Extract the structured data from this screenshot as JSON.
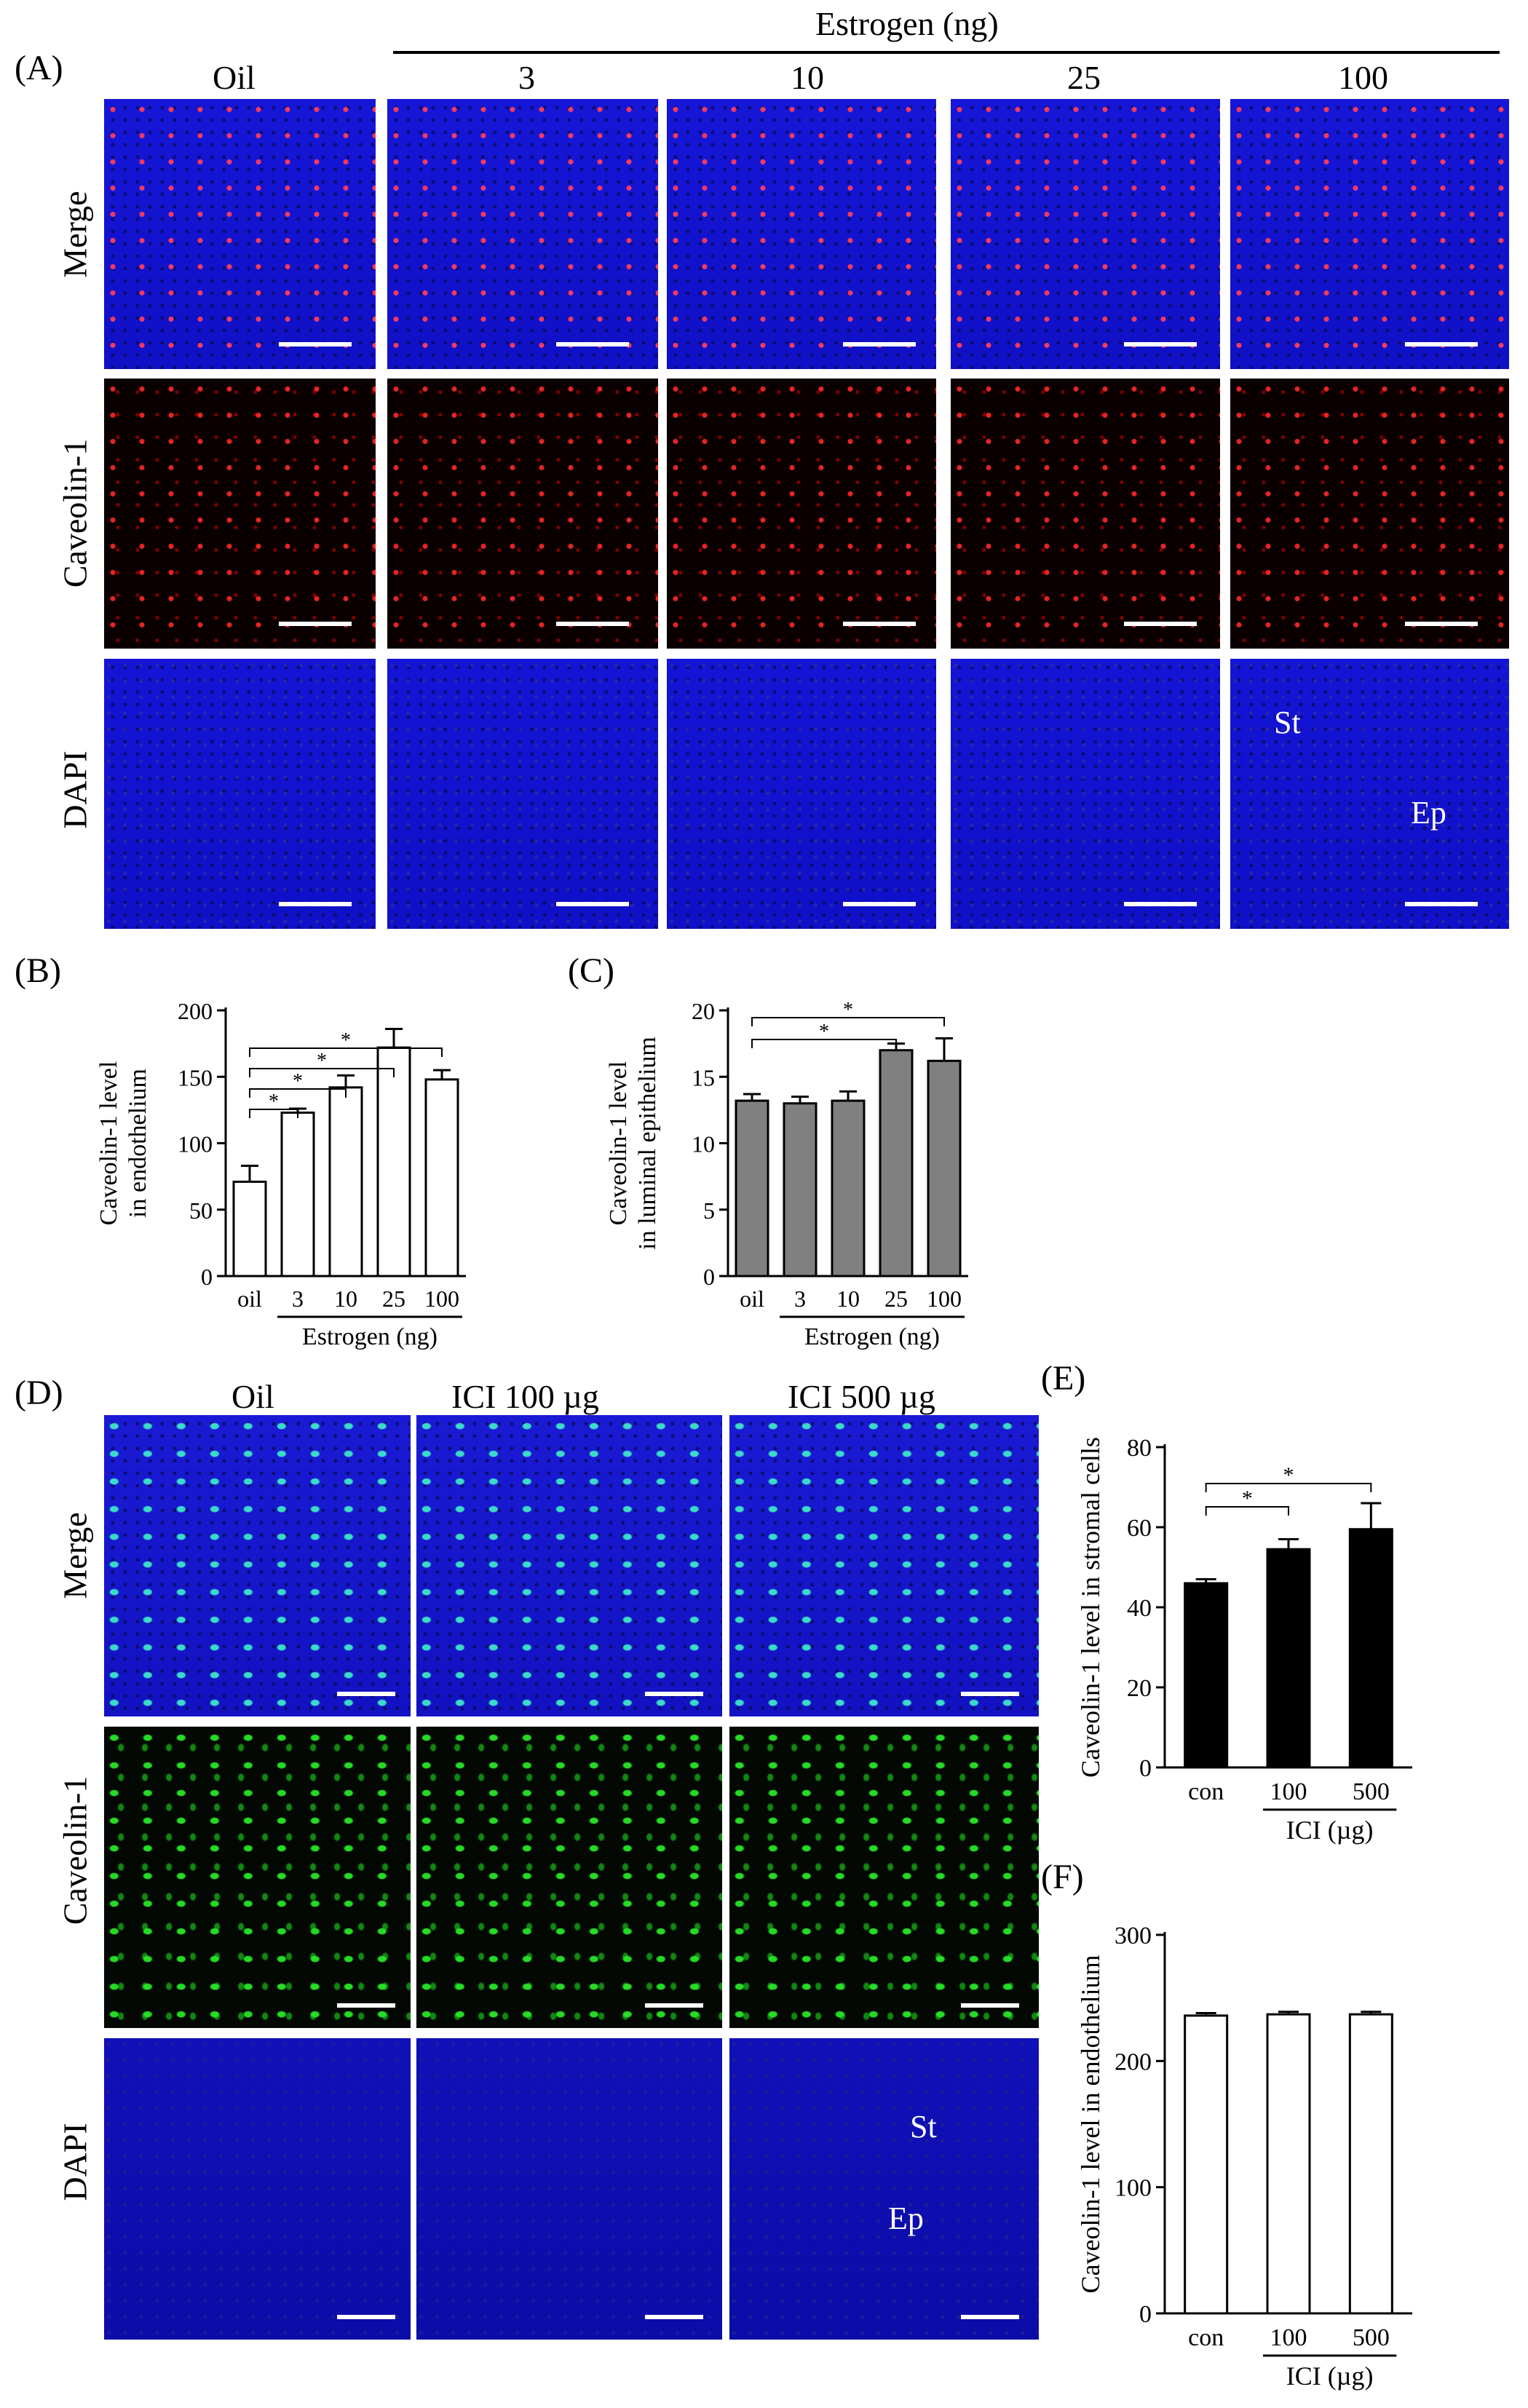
{
  "figure": {
    "panel_labels": {
      "A": "(A)",
      "B": "(B)",
      "C": "(C)",
      "D": "(D)",
      "E": "(E)",
      "F": "(F)"
    },
    "panel_a": {
      "group_header": "Estrogen (ng)",
      "columns": [
        "Oil",
        "3",
        "10",
        "25",
        "100"
      ],
      "rows": [
        "Merge",
        "Caveolin-1",
        "DAPI"
      ],
      "annotations": {
        "st": "St",
        "ep": "Ep"
      }
    },
    "panel_d": {
      "columns": [
        "Oil",
        "ICI 100 µg",
        "ICI 500 µg"
      ],
      "rows": [
        "Merge",
        "Caveolin-1",
        "DAPI"
      ],
      "annotations": {
        "st": "St",
        "ep": "Ep"
      }
    }
  },
  "chart_data": [
    {
      "id": "B",
      "type": "bar",
      "categories": [
        "oil",
        "3",
        "10",
        "25",
        "100"
      ],
      "values": [
        71,
        123,
        142,
        172,
        148
      ],
      "errors": [
        12,
        3,
        9,
        14,
        7
      ],
      "ylabel_lines": [
        "Caveolin-1 level",
        "in endothelium"
      ],
      "ylim": [
        0,
        200
      ],
      "yticks": [
        "0",
        "50",
        "100",
        "150",
        "200"
      ],
      "group_label": "Estrogen (ng)",
      "bar_color": "#ffffff",
      "significance": [
        [
          "oil",
          "3",
          "*"
        ],
        [
          "oil",
          "10",
          "*"
        ],
        [
          "oil",
          "25",
          "*"
        ],
        [
          "oil",
          "100",
          "*"
        ]
      ]
    },
    {
      "id": "C",
      "type": "bar",
      "categories": [
        "oil",
        "3",
        "10",
        "25",
        "100"
      ],
      "values": [
        13.2,
        13.0,
        13.2,
        17.0,
        16.2
      ],
      "errors": [
        0.5,
        0.5,
        0.7,
        0.5,
        1.7
      ],
      "ylabel_lines": [
        "Caveolin-1 level",
        "in luminal epithelium"
      ],
      "ylim": [
        0,
        20
      ],
      "yticks": [
        "0",
        "5",
        "10",
        "15",
        "20"
      ],
      "group_label": "Estrogen (ng)",
      "bar_color": "#808080",
      "significance": [
        [
          "oil",
          "25",
          "*"
        ],
        [
          "oil",
          "100",
          "*"
        ]
      ]
    },
    {
      "id": "E",
      "type": "bar",
      "categories": [
        "con",
        "100",
        "500"
      ],
      "values": [
        46,
        54.5,
        59.5
      ],
      "errors": [
        1,
        2.5,
        6.5
      ],
      "ylabel_lines": [
        "Caveolin-1 level in stromal cells"
      ],
      "ylim": [
        0,
        80
      ],
      "yticks": [
        "0",
        "20",
        "40",
        "60",
        "80"
      ],
      "group_label": "ICI (µg)",
      "bar_color": "#000000",
      "significance": [
        [
          "con",
          "100",
          "*"
        ],
        [
          "con",
          "500",
          "*"
        ]
      ]
    },
    {
      "id": "F",
      "type": "bar",
      "categories": [
        "con",
        "100",
        "500"
      ],
      "values": [
        236,
        237,
        237
      ],
      "errors": [
        2,
        2,
        2
      ],
      "ylabel_lines": [
        "Caveolin-1 level in endothelium"
      ],
      "ylim": [
        0,
        300
      ],
      "yticks": [
        "0",
        "100",
        "200",
        "300"
      ],
      "group_label": "ICI (µg)",
      "bar_color": "#ffffff",
      "significance": []
    }
  ]
}
